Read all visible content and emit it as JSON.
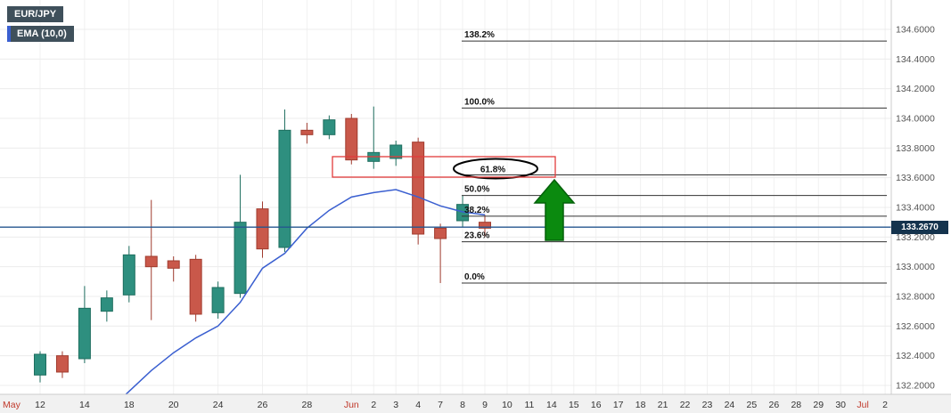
{
  "header": {
    "symbol": "EUR/JPY",
    "indicator": "EMA (10,0)"
  },
  "price_axis": {
    "min": 132.2,
    "max": 134.6,
    "step": 0.2,
    "labels": [
      "134.6000",
      "134.4000",
      "134.2000",
      "134.0000",
      "133.8000",
      "133.6000",
      "133.4000",
      "133.2000",
      "133.0000",
      "132.8000",
      "132.6000",
      "132.4000",
      "132.2000"
    ],
    "current_price": 133.267,
    "current_price_label": "133.2670"
  },
  "time_axis": {
    "ticks": [
      {
        "label": "May",
        "slot": -1.5,
        "month": true
      },
      {
        "label": "12",
        "slot": 0
      },
      {
        "label": "14",
        "slot": 2
      },
      {
        "label": "18",
        "slot": 4
      },
      {
        "label": "20",
        "slot": 6
      },
      {
        "label": "24",
        "slot": 8
      },
      {
        "label": "26",
        "slot": 10
      },
      {
        "label": "28",
        "slot": 12
      },
      {
        "label": "Jun",
        "slot": 14,
        "month": true
      },
      {
        "label": "2",
        "slot": 15
      },
      {
        "label": "3",
        "slot": 16
      },
      {
        "label": "4",
        "slot": 17
      },
      {
        "label": "7",
        "slot": 18
      },
      {
        "label": "8",
        "slot": 19
      },
      {
        "label": "9",
        "slot": 20
      },
      {
        "label": "10",
        "slot": 21
      },
      {
        "label": "11",
        "slot": 22
      },
      {
        "label": "14",
        "slot": 23
      },
      {
        "label": "15",
        "slot": 24
      },
      {
        "label": "16",
        "slot": 25
      },
      {
        "label": "17",
        "slot": 26
      },
      {
        "label": "18",
        "slot": 27
      },
      {
        "label": "21",
        "slot": 28
      },
      {
        "label": "22",
        "slot": 29
      },
      {
        "label": "23",
        "slot": 30
      },
      {
        "label": "24",
        "slot": 31
      },
      {
        "label": "25",
        "slot": 32
      },
      {
        "label": "26",
        "slot": 33
      },
      {
        "label": "28",
        "slot": 34
      },
      {
        "label": "29",
        "slot": 35
      },
      {
        "label": "30",
        "slot": 36
      },
      {
        "label": "Jul",
        "slot": 37,
        "month": true
      },
      {
        "label": "2",
        "slot": 38
      }
    ]
  },
  "chart_data": {
    "type": "candlestick",
    "title": "EUR/JPY daily candlestick chart with EMA(10) and Fibonacci retracement",
    "ylim": [
      132.2,
      134.6
    ],
    "grid": true,
    "candles": [
      {
        "date": "May 12",
        "open": 132.27,
        "high": 132.43,
        "low": 132.22,
        "close": 132.41
      },
      {
        "date": "May 13",
        "open": 132.4,
        "high": 132.43,
        "low": 132.25,
        "close": 132.29
      },
      {
        "date": "May 14",
        "open": 132.38,
        "high": 132.87,
        "low": 132.35,
        "close": 132.72
      },
      {
        "date": "May 17",
        "open": 132.7,
        "high": 132.84,
        "low": 132.63,
        "close": 132.79
      },
      {
        "date": "May 18",
        "open": 132.81,
        "high": 133.14,
        "low": 132.76,
        "close": 133.08
      },
      {
        "date": "May 19",
        "open": 133.07,
        "high": 133.45,
        "low": 132.64,
        "close": 133.0
      },
      {
        "date": "May 20",
        "open": 133.04,
        "high": 133.07,
        "low": 132.9,
        "close": 132.99
      },
      {
        "date": "May 21",
        "open": 133.05,
        "high": 133.08,
        "low": 132.63,
        "close": 132.68
      },
      {
        "date": "May 24",
        "open": 132.69,
        "high": 132.9,
        "low": 132.65,
        "close": 132.86
      },
      {
        "date": "May 25",
        "open": 132.82,
        "high": 133.62,
        "low": 132.79,
        "close": 133.3
      },
      {
        "date": "May 26",
        "open": 133.39,
        "high": 133.44,
        "low": 133.06,
        "close": 133.12
      },
      {
        "date": "May 27",
        "open": 133.13,
        "high": 134.06,
        "low": 133.1,
        "close": 133.92
      },
      {
        "date": "May 28",
        "open": 133.92,
        "high": 133.97,
        "low": 133.83,
        "close": 133.89
      },
      {
        "date": "May 31",
        "open": 133.89,
        "high": 134.02,
        "low": 133.86,
        "close": 133.99
      },
      {
        "date": "Jun 1",
        "open": 134.0,
        "high": 134.03,
        "low": 133.69,
        "close": 133.72
      },
      {
        "date": "Jun 2",
        "open": 133.71,
        "high": 134.08,
        "low": 133.66,
        "close": 133.77
      },
      {
        "date": "Jun 3",
        "open": 133.73,
        "high": 133.85,
        "low": 133.68,
        "close": 133.82
      },
      {
        "date": "Jun 4",
        "open": 133.84,
        "high": 133.87,
        "low": 133.15,
        "close": 133.22
      },
      {
        "date": "Jun 7",
        "open": 133.26,
        "high": 133.29,
        "low": 132.89,
        "close": 133.19
      },
      {
        "date": "Jun 8",
        "open": 133.31,
        "high": 133.48,
        "low": 133.27,
        "close": 133.42
      },
      {
        "date": "Jun 9",
        "open": 133.3,
        "high": 133.35,
        "low": 133.2,
        "close": 133.26
      }
    ],
    "ema_series": {
      "name": "EMA (10,0)",
      "values": [
        null,
        null,
        null,
        132.02,
        132.16,
        132.3,
        132.42,
        132.52,
        132.6,
        132.76,
        132.99,
        133.09,
        133.26,
        133.38,
        133.47,
        133.5,
        133.52,
        133.47,
        133.41,
        133.37,
        133.35
      ]
    },
    "fibonacci_levels": [
      {
        "label": "138.2%",
        "price": 134.521
      },
      {
        "label": "100.0%",
        "price": 134.07
      },
      {
        "label": "61.8%",
        "price": 133.619,
        "circled": true
      },
      {
        "label": "50.0%",
        "price": 133.48
      },
      {
        "label": "38.2%",
        "price": 133.341
      },
      {
        "label": "23.6%",
        "price": 133.168
      },
      {
        "label": "0.0%",
        "price": 132.89
      }
    ],
    "annotations": {
      "circled_level": "61.8%",
      "arrow_direction": "up",
      "current_price_line": 133.267
    }
  },
  "colors": {
    "bull": "#2e8f7f",
    "bull_border": "#1e6e5f",
    "bear": "#c9584a",
    "bear_border": "#a03b2e",
    "ema_line": "#3a5fd0",
    "current_price_line": "#24568f",
    "price_badge_bg": "#14334d",
    "badge_bg": "#3f505b",
    "fib_line": "#333333",
    "fib_label": "#111111",
    "highlight_box": "#e23b3b",
    "arrow_fill": "#0b8a0f",
    "arrow_border": "#04610a",
    "ellipse": "#000000",
    "grid": "#ececec",
    "grid_vertical": "#f1f1f1",
    "axis_strip": "#f1f1f1",
    "axis_border": "#cccccc"
  }
}
